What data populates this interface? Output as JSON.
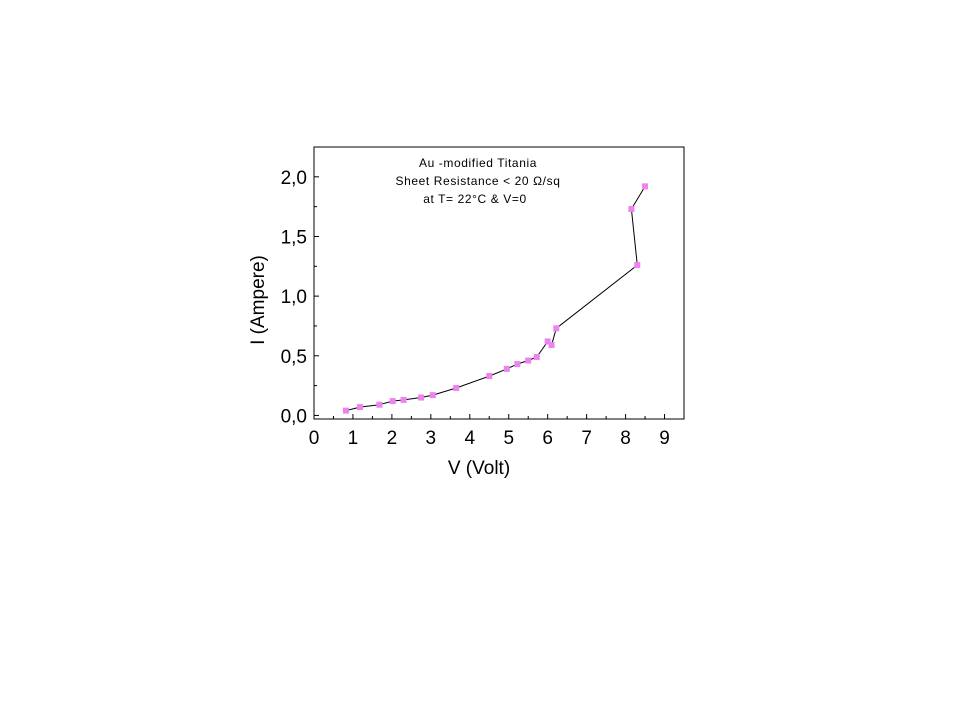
{
  "chart_data": {
    "type": "scatter",
    "xlabel": "V (Volt)",
    "ylabel": "I (Ampere)",
    "xlim": [
      0,
      9.5
    ],
    "ylim": [
      -0.03,
      2.25
    ],
    "x_ticks": [
      "0",
      "1",
      "2",
      "3",
      "4",
      "5",
      "6",
      "7",
      "8",
      "9"
    ],
    "y_ticks": [
      "0,0",
      "0,5",
      "1,0",
      "1,5",
      "2,0"
    ],
    "annotation": {
      "line1": "Au -modified Titania",
      "line2": "Sheet Resistance < 20 Ω/sq",
      "line3": "at T= 22°C & V=0"
    },
    "grid": false,
    "marker_color": "#ee82ee",
    "line_color": "#000000",
    "series": [
      {
        "x": [
          0.82,
          1.18,
          1.68,
          2.02,
          2.3,
          2.75,
          3.05,
          3.65,
          4.5,
          4.95,
          5.22,
          5.5,
          5.72,
          6.0,
          6.1,
          6.22,
          8.3,
          8.15,
          8.5
        ],
        "y": [
          0.04,
          0.07,
          0.09,
          0.12,
          0.13,
          0.15,
          0.17,
          0.23,
          0.33,
          0.39,
          0.43,
          0.46,
          0.49,
          0.62,
          0.59,
          0.73,
          1.26,
          1.73,
          1.92
        ]
      }
    ]
  }
}
